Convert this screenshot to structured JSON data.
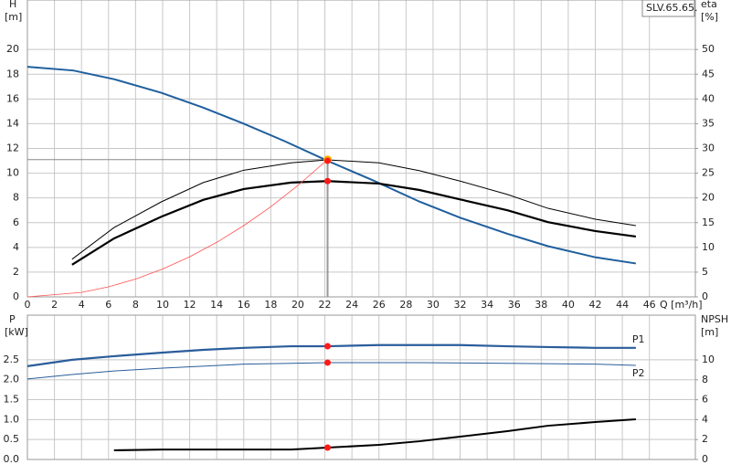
{
  "chart_data": [
    {
      "type": "line",
      "title": "SLV.65.65.",
      "ylabel": [
        "H",
        "[m]"
      ],
      "y2label": [
        "eta",
        "[%]"
      ],
      "xlabel": "Q [m³/h]",
      "xlim": [
        0,
        49.4
      ],
      "xticks": [
        0,
        2,
        4,
        6,
        8,
        10,
        12,
        14,
        16,
        18,
        20,
        22,
        24,
        26,
        28,
        30,
        32,
        34,
        36,
        38,
        40,
        42,
        44,
        46
      ],
      "ylim": [
        0,
        24
      ],
      "yticks": [
        0,
        2,
        4,
        6,
        8,
        10,
        12,
        14,
        16,
        18,
        20
      ],
      "y2lim": [
        0,
        60
      ],
      "y2ticks": [
        0,
        5,
        10,
        15,
        20,
        25,
        30,
        35,
        40,
        45,
        50
      ],
      "grid": true,
      "series": [
        {
          "color": "#1f5f9e",
          "x": [
            0,
            3.4,
            6.4,
            9.9,
            13,
            16,
            19,
            22.2,
            25.6,
            29,
            32,
            35.5,
            38.5,
            42,
            45
          ],
          "values": [
            18.6,
            18.3,
            17.6,
            16.5,
            15.3,
            14.0,
            12.6,
            11.0,
            9.4,
            7.7,
            6.4,
            5.1,
            4.1,
            3.2,
            2.7
          ]
        },
        {
          "color": "#000000",
          "axis": "y2",
          "x": [
            3.3,
            6.4,
            9.9,
            13,
            16,
            19.5,
            22.2,
            26,
            29,
            32,
            35.5,
            38.5,
            42,
            45
          ],
          "values": [
            7.6,
            14.0,
            19.2,
            23.1,
            25.6,
            27.1,
            27.7,
            27.1,
            25.5,
            23.4,
            20.7,
            17.9,
            15.7,
            14.4
          ]
        },
        {
          "color": "#000000",
          "axis": "y2",
          "x": [
            3.3,
            6.4,
            9.9,
            13,
            16,
            19.5,
            22.2,
            26,
            29,
            32,
            35.5,
            38.5,
            42,
            45
          ],
          "values": [
            6.5,
            11.8,
            16.2,
            19.6,
            21.8,
            23.1,
            23.4,
            22.9,
            21.6,
            19.7,
            17.5,
            15.1,
            13.3,
            12.2
          ]
        },
        {
          "color": "#ff5050",
          "x": [
            0,
            4,
            6,
            8,
            10,
            12,
            14,
            16,
            18,
            20,
            22.2
          ],
          "values": [
            0,
            0.36,
            0.81,
            1.44,
            2.25,
            3.24,
            4.41,
            5.76,
            7.29,
            9.0,
            11.1
          ]
        }
      ],
      "guide": {
        "x": 22.2,
        "y": 11.1
      },
      "points": [
        {
          "x": 22.2,
          "y": 11.1,
          "color": "#ffb000"
        },
        {
          "x": 22.2,
          "y": 11.0,
          "color": "#ff1a1a"
        },
        {
          "x": 22.2,
          "y": 23.4,
          "color": "#ff1a1a",
          "axis": "y2"
        }
      ]
    },
    {
      "type": "line",
      "ylabel": [
        "P",
        "[kW]"
      ],
      "y2label": [
        "NPSH",
        "[m]"
      ],
      "ylim": [
        0,
        3.62
      ],
      "yticks": [
        {
          "value": 0,
          "label": "0.0"
        },
        0.5,
        {
          "value": 1,
          "label": "1.0"
        },
        1.5,
        {
          "value": 2,
          "label": "2.0"
        },
        2.5
      ],
      "y2lim": [
        0,
        14.5
      ],
      "y2ticks": [
        0,
        2,
        4,
        6,
        8,
        10
      ],
      "grid": true,
      "series": [
        {
          "name": "P1",
          "color": "#2a5d9b",
          "x": [
            0,
            3.3,
            6.4,
            10,
            13,
            16,
            19.5,
            22.2,
            26,
            29,
            32,
            35.5,
            38.5,
            42,
            45
          ],
          "values": [
            2.34,
            2.5,
            2.59,
            2.68,
            2.75,
            2.8,
            2.84,
            2.84,
            2.87,
            2.87,
            2.87,
            2.84,
            2.82,
            2.8,
            2.8
          ]
        },
        {
          "name": "P2",
          "color": "#2a5d9b",
          "x": [
            0,
            3.3,
            6.4,
            10,
            13,
            16,
            19.5,
            22.2,
            26,
            29,
            35.5,
            42,
            45
          ],
          "values": [
            2.02,
            2.13,
            2.22,
            2.29,
            2.34,
            2.39,
            2.41,
            2.43,
            2.43,
            2.43,
            2.41,
            2.39,
            2.36
          ]
        },
        {
          "color": "#000000",
          "axis": "y2",
          "x": [
            6.4,
            10,
            13,
            16,
            19.5,
            22.2,
            26,
            29,
            32,
            35.5,
            38.5,
            42,
            45
          ],
          "values": [
            0.92,
            1.0,
            1.0,
            1.0,
            1.0,
            1.19,
            1.47,
            1.83,
            2.29,
            2.84,
            3.39,
            3.76,
            4.04
          ]
        }
      ],
      "points": [
        {
          "x": 22.2,
          "y": 2.84,
          "color": "#ff1a1a"
        },
        {
          "x": 22.2,
          "y": 2.43,
          "color": "#ff1a1a"
        },
        {
          "x": 22.2,
          "y": 1.19,
          "color": "#ff1a1a",
          "axis": "y2"
        }
      ]
    }
  ]
}
